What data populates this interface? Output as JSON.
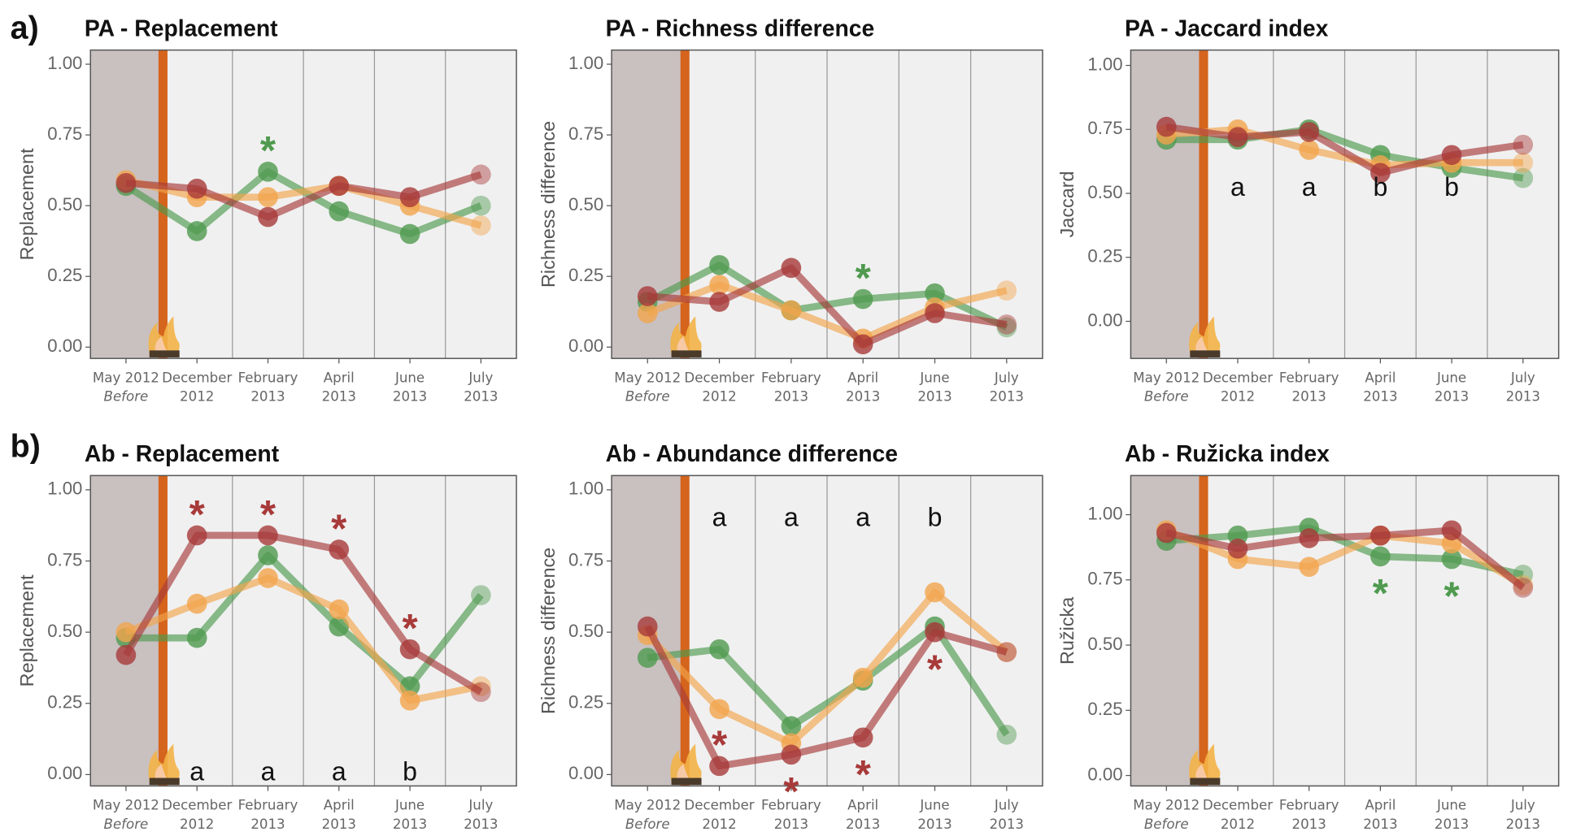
{
  "panel_labels": [
    "a)",
    "b)"
  ],
  "chart_data": [
    {
      "type": "line",
      "title": "PA - Replacement",
      "ylabel": "Replacement",
      "categories": [
        [
          "May 2012",
          "Before"
        ],
        [
          "December",
          "2012"
        ],
        [
          "February",
          "2013"
        ],
        [
          "April",
          "2013"
        ],
        [
          "June",
          "2013"
        ],
        [
          "July",
          "2013"
        ]
      ],
      "ylim": [
        -0.04,
        1.05
      ],
      "yticks": [
        {
          "value": 0,
          "label": "0.00"
        },
        {
          "value": 0.25,
          "label": "0.25"
        },
        {
          "value": 0.5,
          "label": "0.50"
        },
        {
          "value": 0.75,
          "label": "0.75"
        },
        {
          "value": 1,
          "label": "1.00"
        }
      ],
      "series": [
        {
          "color": "#4f9a4f",
          "values": [
            0.57,
            0.41,
            0.62,
            0.48,
            0.4,
            0.5
          ]
        },
        {
          "color": "#f2a54c",
          "values": [
            0.59,
            0.53,
            0.53,
            0.57,
            0.5,
            0.43
          ]
        },
        {
          "color": "#a83a3a",
          "values": [
            0.58,
            0.56,
            0.46,
            0.57,
            0.53,
            0.61
          ]
        }
      ],
      "annotations": [
        {
          "text": "*",
          "series": 0,
          "category": 2,
          "position": "above"
        }
      ]
    },
    {
      "type": "line",
      "title": "PA - Richness difference",
      "ylabel": "Richness difference",
      "categories": [
        [
          "May 2012",
          "Before"
        ],
        [
          "December",
          "2012"
        ],
        [
          "February",
          "2013"
        ],
        [
          "April",
          "2013"
        ],
        [
          "June",
          "2013"
        ],
        [
          "July",
          "2013"
        ]
      ],
      "ylim": [
        -0.04,
        1.05
      ],
      "yticks": [
        {
          "value": 0,
          "label": "0.00"
        },
        {
          "value": 0.25,
          "label": "0.25"
        },
        {
          "value": 0.5,
          "label": "0.50"
        },
        {
          "value": 0.75,
          "label": "0.75"
        },
        {
          "value": 1,
          "label": "1.00"
        }
      ],
      "series": [
        {
          "color": "#4f9a4f",
          "values": [
            0.16,
            0.29,
            0.13,
            0.17,
            0.19,
            0.07
          ]
        },
        {
          "color": "#f2a54c",
          "values": [
            0.12,
            0.22,
            0.13,
            0.03,
            0.14,
            0.2
          ]
        },
        {
          "color": "#a83a3a",
          "values": [
            0.18,
            0.16,
            0.28,
            0.01,
            0.12,
            0.08
          ]
        }
      ],
      "annotations": [
        {
          "text": "*",
          "series": 0,
          "category": 3,
          "position": "above"
        }
      ]
    },
    {
      "type": "line",
      "title": "PA - Jaccard index",
      "ylabel": "Jaccard",
      "categories": [
        [
          "May 2012",
          "Before"
        ],
        [
          "December",
          "2012"
        ],
        [
          "February",
          "2013"
        ],
        [
          "April",
          "2013"
        ],
        [
          "June",
          "2013"
        ],
        [
          "July",
          "2013"
        ]
      ],
      "ylim": [
        -0.145,
        1.06
      ],
      "yticks": [
        {
          "value": 0,
          "label": "0.00"
        },
        {
          "value": 0.25,
          "label": "0.25"
        },
        {
          "value": 0.5,
          "label": "0.50"
        },
        {
          "value": 0.75,
          "label": "0.75"
        },
        {
          "value": 1,
          "label": "1.00"
        }
      ],
      "series": [
        {
          "color": "#4f9a4f",
          "values": [
            0.71,
            0.71,
            0.75,
            0.65,
            0.6,
            0.56
          ]
        },
        {
          "color": "#f2a54c",
          "values": [
            0.73,
            0.75,
            0.67,
            0.61,
            0.62,
            0.62
          ]
        },
        {
          "color": "#a83a3a",
          "values": [
            0.76,
            0.72,
            0.74,
            0.58,
            0.65,
            0.69
          ]
        }
      ],
      "letters": [
        {
          "text": "a",
          "category": 1
        },
        {
          "text": "a",
          "category": 2
        },
        {
          "text": "b",
          "category": 3
        },
        {
          "text": "b",
          "category": 4
        }
      ]
    },
    {
      "type": "line",
      "title": "Ab - Replacement",
      "ylabel": "Replacement",
      "categories": [
        [
          "May 2012",
          "Before"
        ],
        [
          "December",
          "2012"
        ],
        [
          "February",
          "2013"
        ],
        [
          "April",
          "2013"
        ],
        [
          "June",
          "2013"
        ],
        [
          "July",
          "2013"
        ]
      ],
      "ylim": [
        -0.04,
        1.05
      ],
      "yticks": [
        {
          "value": 0,
          "label": "0.00"
        },
        {
          "value": 0.25,
          "label": "0.25"
        },
        {
          "value": 0.5,
          "label": "0.50"
        },
        {
          "value": 0.75,
          "label": "0.75"
        },
        {
          "value": 1,
          "label": "1.00"
        }
      ],
      "series": [
        {
          "color": "#4f9a4f",
          "values": [
            0.48,
            0.48,
            0.77,
            0.52,
            0.31,
            0.63
          ]
        },
        {
          "color": "#f2a54c",
          "values": [
            0.5,
            0.6,
            0.69,
            0.58,
            0.26,
            0.31
          ]
        },
        {
          "color": "#a83a3a",
          "values": [
            0.42,
            0.84,
            0.84,
            0.79,
            0.44,
            0.29
          ]
        }
      ],
      "annotations": [
        {
          "text": "*",
          "series": 2,
          "category": 1,
          "position": "above"
        },
        {
          "text": "*",
          "series": 2,
          "category": 2,
          "position": "above"
        },
        {
          "text": "*",
          "series": 2,
          "category": 3,
          "position": "above"
        },
        {
          "text": "*",
          "series": 2,
          "category": 4,
          "position": "above"
        }
      ],
      "letters": [
        {
          "text": "a",
          "category": 1
        },
        {
          "text": "a",
          "category": 2
        },
        {
          "text": "a",
          "category": 3
        },
        {
          "text": "b",
          "category": 4
        }
      ]
    },
    {
      "type": "line",
      "title": "Ab - Abundance difference",
      "ylabel": "Richness difference",
      "categories": [
        [
          "May 2012",
          "Before"
        ],
        [
          "December",
          "2012"
        ],
        [
          "February",
          "2013"
        ],
        [
          "April",
          "2013"
        ],
        [
          "June",
          "2013"
        ],
        [
          "July",
          "2013"
        ]
      ],
      "ylim": [
        -0.04,
        1.05
      ],
      "yticks": [
        {
          "value": 0,
          "label": "0.00"
        },
        {
          "value": 0.25,
          "label": "0.25"
        },
        {
          "value": 0.5,
          "label": "0.50"
        },
        {
          "value": 0.75,
          "label": "0.75"
        },
        {
          "value": 1,
          "label": "1.00"
        }
      ],
      "series": [
        {
          "color": "#4f9a4f",
          "values": [
            0.41,
            0.44,
            0.17,
            0.33,
            0.52,
            0.14
          ]
        },
        {
          "color": "#f2a54c",
          "values": [
            0.49,
            0.23,
            0.11,
            0.34,
            0.64,
            0.43
          ]
        },
        {
          "color": "#a83a3a",
          "values": [
            0.52,
            0.03,
            0.07,
            0.13,
            0.5,
            0.43
          ]
        }
      ],
      "annotations": [
        {
          "text": "*",
          "series": 2,
          "category": 1,
          "position": "above"
        },
        {
          "text": "*",
          "series": 2,
          "category": 2,
          "position": "below"
        },
        {
          "text": "*",
          "series": 2,
          "category": 3,
          "position": "below"
        },
        {
          "text": "*",
          "series": 2,
          "category": 4,
          "position": "below"
        }
      ],
      "letters": [
        {
          "text": "a",
          "category": 1
        },
        {
          "text": "a",
          "category": 2
        },
        {
          "text": "a",
          "category": 3
        },
        {
          "text": "b",
          "category": 4
        }
      ]
    },
    {
      "type": "line",
      "title": "Ab - Ružicka index",
      "ylabel": "Ružicka",
      "categories": [
        [
          "May 2012",
          "Before"
        ],
        [
          "December",
          "2012"
        ],
        [
          "February",
          "2013"
        ],
        [
          "April",
          "2013"
        ],
        [
          "June",
          "2013"
        ],
        [
          "July",
          "2013"
        ]
      ],
      "ylim": [
        -0.04,
        1.15
      ],
      "yticks": [
        {
          "value": 0,
          "label": "0.00"
        },
        {
          "value": 0.25,
          "label": "0.25"
        },
        {
          "value": 0.5,
          "label": "0.50"
        },
        {
          "value": 0.75,
          "label": "0.75"
        },
        {
          "value": 1,
          "label": "1.00"
        }
      ],
      "series": [
        {
          "color": "#4f9a4f",
          "values": [
            0.9,
            0.92,
            0.95,
            0.84,
            0.83,
            0.77
          ]
        },
        {
          "color": "#f2a54c",
          "values": [
            0.94,
            0.83,
            0.8,
            0.92,
            0.89,
            0.73
          ]
        },
        {
          "color": "#a83a3a",
          "values": [
            0.93,
            0.87,
            0.91,
            0.92,
            0.94,
            0.72
          ]
        }
      ],
      "annotations": [
        {
          "text": "*",
          "series": 0,
          "category": 3,
          "position": "below"
        },
        {
          "text": "*",
          "series": 0,
          "category": 4,
          "position": "below"
        }
      ]
    }
  ]
}
